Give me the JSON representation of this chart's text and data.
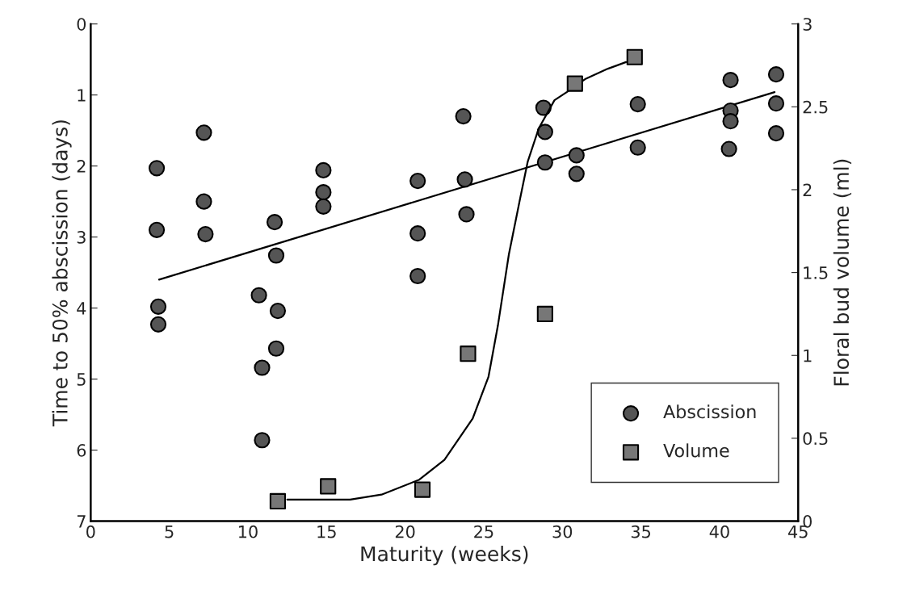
{
  "chart_data": {
    "type": "scatter",
    "xlabel": "Maturity (weeks)",
    "ylabel": "Time to 50% abscission (days)",
    "y2label": "Floral bud volume (ml)",
    "xlim": [
      0,
      45
    ],
    "xticks": [
      0,
      5,
      10,
      15,
      20,
      25,
      30,
      35,
      40,
      45
    ],
    "ylim": [
      7,
      0
    ],
    "yticks": [
      0,
      1,
      2,
      3,
      4,
      5,
      6,
      7
    ],
    "y2lim": [
      0,
      3
    ],
    "y2ticks": [
      0,
      0.5,
      1,
      1.5,
      2,
      2.5,
      3
    ],
    "grid": false,
    "legend": "bottom right",
    "series": [
      {
        "name": "Abscission",
        "marker": "circle",
        "color": "#555555",
        "x": [
          4.2,
          7.2,
          7.2,
          4.2,
          7.3,
          4.3,
          4.3,
          14.8,
          14.8,
          14.8,
          11.7,
          11.8,
          10.7,
          11.9,
          20.8,
          20.8,
          20.8,
          11.8,
          10.9,
          10.9,
          23.7,
          23.8,
          23.9,
          28.8,
          28.9,
          28.9,
          30.9,
          30.9,
          34.8,
          34.8,
          40.7,
          40.7,
          40.7,
          40.6,
          43.6,
          43.6,
          43.6
        ],
        "values": [
          2.03,
          1.53,
          2.5,
          2.9,
          2.96,
          3.98,
          4.23,
          2.06,
          2.37,
          2.57,
          2.79,
          3.26,
          3.82,
          4.04,
          2.21,
          2.95,
          3.55,
          4.57,
          4.84,
          5.86,
          1.3,
          2.19,
          2.68,
          1.18,
          1.52,
          1.95,
          1.85,
          2.11,
          1.13,
          1.74,
          0.79,
          1.22,
          1.37,
          1.76,
          0.71,
          1.12,
          1.54
        ]
      },
      {
        "name": "Volume",
        "marker": "square",
        "axis": "y2",
        "color": "#777777",
        "x": [
          11.9,
          15.1,
          21.1,
          24.0,
          28.9,
          30.8,
          34.6
        ],
        "values": [
          0.12,
          0.21,
          0.19,
          1.01,
          1.25,
          2.64,
          2.8
        ]
      },
      {
        "type": "line",
        "marker": "none",
        "line_style": "solid",
        "color": "#000000",
        "x": [
          4.35,
          43.5
        ],
        "values": [
          3.6,
          0.96
        ]
      },
      {
        "type": "line",
        "marker": "none",
        "line_style": "solid",
        "axis": "y2",
        "color": "#000000",
        "x": [
          12.5,
          16.5,
          18.5,
          20.9,
          22.5,
          24.3,
          25.3,
          25.9,
          26.6,
          27.3,
          27.8,
          28.5,
          29.5,
          30.3,
          31.5,
          32.9,
          34.05
        ],
        "values": [
          0.13,
          0.13,
          0.16,
          0.25,
          0.37,
          0.62,
          0.87,
          1.18,
          1.61,
          1.94,
          2.17,
          2.37,
          2.54,
          2.59,
          2.67,
          2.73,
          2.77
        ]
      }
    ]
  }
}
